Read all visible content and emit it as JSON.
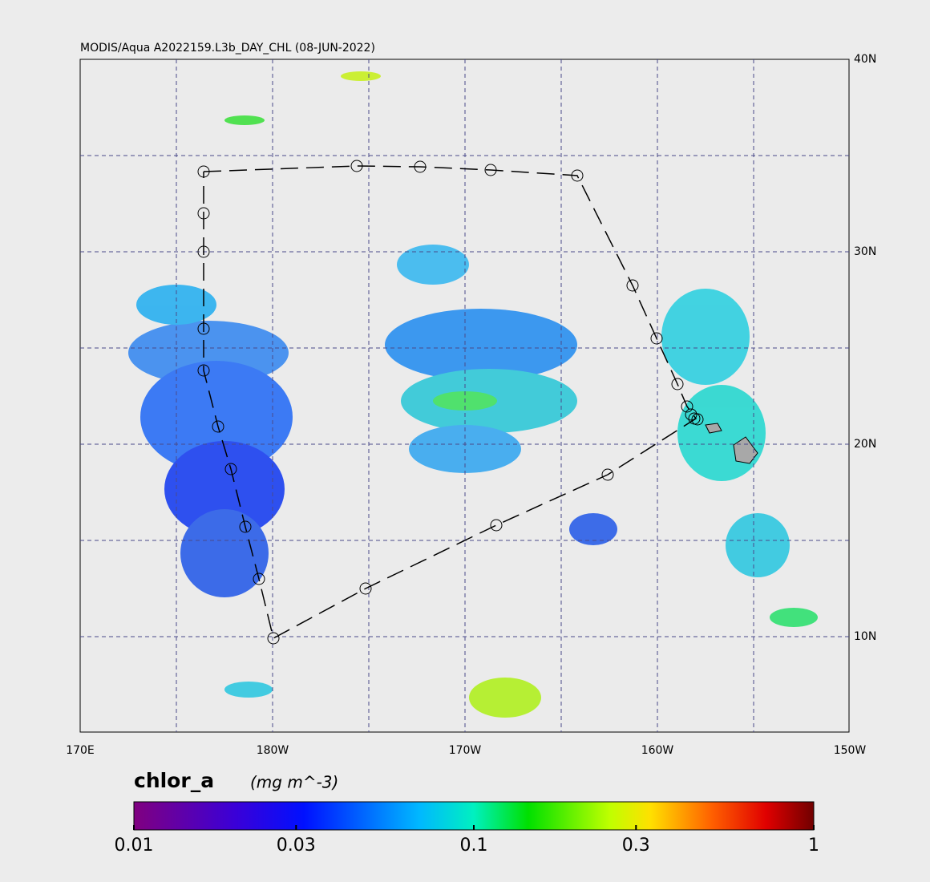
{
  "title": "MODIS/Aqua A2022159.L3b_DAY_CHL (08-JUN-2022)",
  "map": {
    "lat_labels": [
      "40N",
      "30N",
      "20N",
      "10N"
    ],
    "lon_labels": [
      "170E",
      "180W",
      "170W",
      "160W",
      "150W"
    ]
  },
  "colorbar": {
    "title": "chlor_a",
    "units": "(mg m^-3)",
    "log": true,
    "lim": [
      0.01,
      1
    ],
    "ticks": [
      0.01,
      0.03,
      0.1,
      0.3,
      1
    ]
  }
}
